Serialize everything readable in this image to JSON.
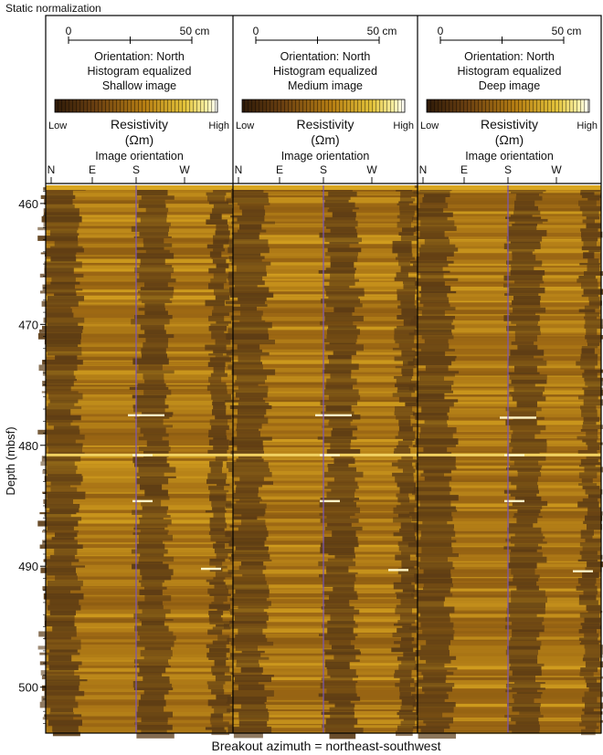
{
  "figure": {
    "title": "Static normalization",
    "y_axis_label": "Depth (mbsf)",
    "depth_ticks": [
      460,
      470,
      480,
      490,
      500
    ],
    "depth_range": [
      458.5,
      503.8
    ],
    "caption": "Breakout azimuth = northeast-southwest",
    "colors": {
      "dark": "#5a3a14",
      "mid": "#a06b14",
      "bright": "#d8a520",
      "highlight": "#fff6c8",
      "orientation_line": "#7a56b8"
    }
  },
  "panels": [
    {
      "id": "shallow",
      "scale": {
        "zero": "0",
        "max": "50 cm"
      },
      "orientation": "Orientation: North",
      "processing": "Histogram equalized",
      "image_name": "Shallow image",
      "colorbar": {
        "low": "Low",
        "high": "High",
        "quantity": "Resistivity",
        "unit": "(Ωm)"
      },
      "orientation_title": "Image orientation",
      "compass": [
        "N",
        "E",
        "S",
        "W"
      ],
      "bright_spots_depth": [
        477.5,
        480.8,
        484.6,
        490.2
      ]
    },
    {
      "id": "medium",
      "scale": {
        "zero": "0",
        "max": "50 cm"
      },
      "orientation": "Orientation: North",
      "processing": "Histogram equalized",
      "image_name": "Medium image",
      "colorbar": {
        "low": "Low",
        "high": "High",
        "quantity": "Resistivity",
        "unit": "(Ωm)"
      },
      "orientation_title": "Image orientation",
      "compass": [
        "N",
        "E",
        "S",
        "W"
      ],
      "bright_spots_depth": [
        477.5,
        480.8,
        484.6,
        490.3
      ]
    },
    {
      "id": "deep",
      "scale": {
        "zero": "0",
        "max": "50 cm"
      },
      "orientation": "Orientation: North",
      "processing": "Histogram equalized",
      "image_name": "Deep image",
      "colorbar": {
        "low": "Low",
        "high": "High",
        "quantity": "Resistivity",
        "unit": "(Ωm)"
      },
      "orientation_title": "Image orientation",
      "compass": [
        "N",
        "E",
        "S",
        "W"
      ],
      "bright_spots_depth": [
        477.7,
        480.8,
        484.6,
        490.4
      ]
    }
  ]
}
